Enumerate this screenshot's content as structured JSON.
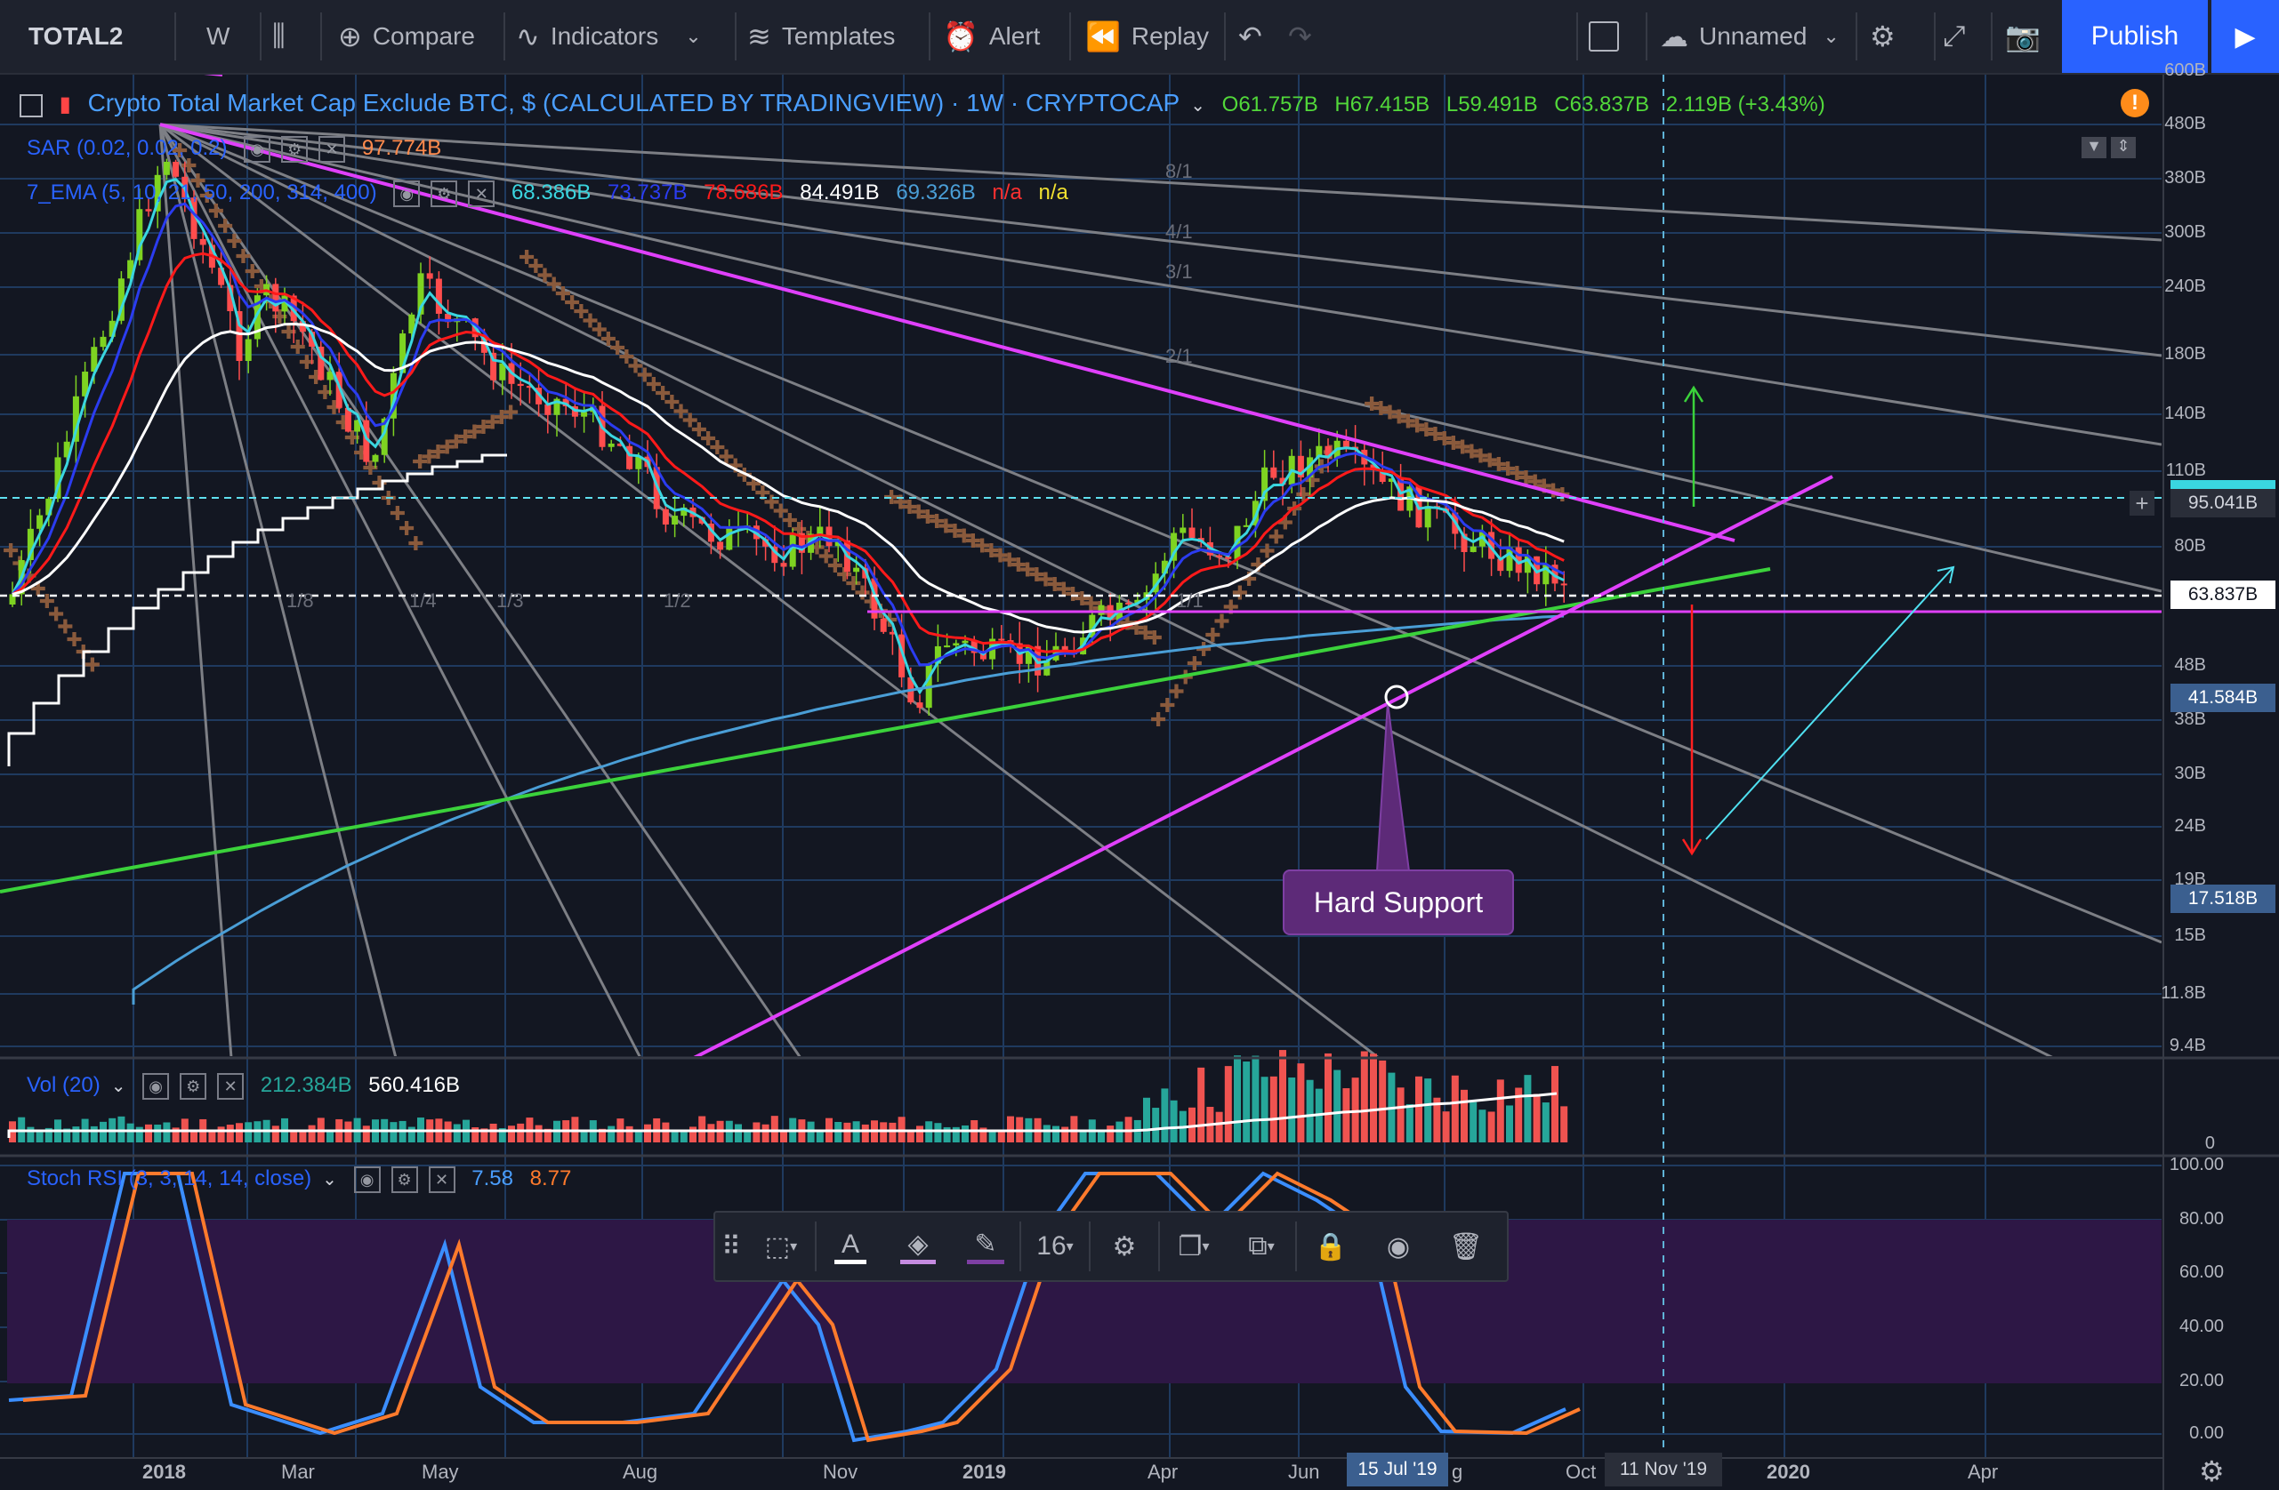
{
  "topbar": {
    "symbol": "TOTAL2",
    "interval": "W",
    "compare": "Compare",
    "indicators": "Indicators",
    "templates": "Templates",
    "alert": "Alert",
    "replay": "Replay",
    "layout_name": "Unnamed",
    "publish": "Publish"
  },
  "legend": {
    "title": "Crypto Total Market Cap Exclude BTC, $ (CALCULATED BY TRADINGVIEW) · 1W · CRYPTOCAP",
    "open": "O61.757B",
    "high": "H67.415B",
    "low": "L59.491B",
    "close": "C63.837B",
    "change": "2.119B (+3.43%)",
    "sar_label": "SAR (0.02, 0.02, 0.2)",
    "sar_value": "97.774B",
    "ema_label": "7_EMA (5, 10, 21, 50, 200, 314, 400)",
    "ema_values": [
      "68.386B",
      "73.737B",
      "78.686B",
      "84.491B",
      "69.326B",
      "n/a",
      "n/a"
    ],
    "vol_label": "Vol (20)",
    "vol_values": [
      "212.384B",
      "560.416B"
    ],
    "stoch_label": "Stoch RSI (3, 3, 14, 14, close)",
    "stoch_values": [
      "7.58",
      "8.77"
    ]
  },
  "price_axis": [
    "600B",
    "480B",
    "380B",
    "300B",
    "240B",
    "180B",
    "140B",
    "110B",
    "80B",
    "48B",
    "38B",
    "30B",
    "24B",
    "19B",
    "15B",
    "11.8B",
    "9.4B"
  ],
  "price_tags": {
    "crosshair": "95.041B",
    "last": "63.837B",
    "level1": "41.584B",
    "level2": "17.518B"
  },
  "vol_axis": [
    "0"
  ],
  "stoch_axis": [
    "100.00",
    "80.00",
    "60.00",
    "40.00",
    "20.00",
    "0.00"
  ],
  "time_axis": [
    "2018",
    "Mar",
    "May",
    "Aug",
    "Nov",
    "2019",
    "Apr",
    "Jun",
    "Oct",
    "2020",
    "Apr"
  ],
  "time_tags": {
    "cursor_date": "11 Nov '19",
    "selected_date": "15 Jul '19",
    "partial": "g"
  },
  "fan_labels": [
    "8/1",
    "4/1",
    "3/1",
    "2/1",
    "1/8",
    "1/4",
    "1/3",
    "1/2",
    "1/1"
  ],
  "annotation": "Hard Support",
  "toolbar_font_size": "16",
  "colors": {
    "background": "#131722",
    "ema_white": "#ffffff",
    "ema_red": "#ff1a1a",
    "ema_blue": "#2b3cf0",
    "ema_cyan": "#3ad6e0",
    "ema_steel": "#4a9ed6",
    "sar": "#8a5a3c",
    "trend_green": "#3bd23b",
    "trend_magenta": "#e040fb",
    "publish": "#2962ff"
  }
}
